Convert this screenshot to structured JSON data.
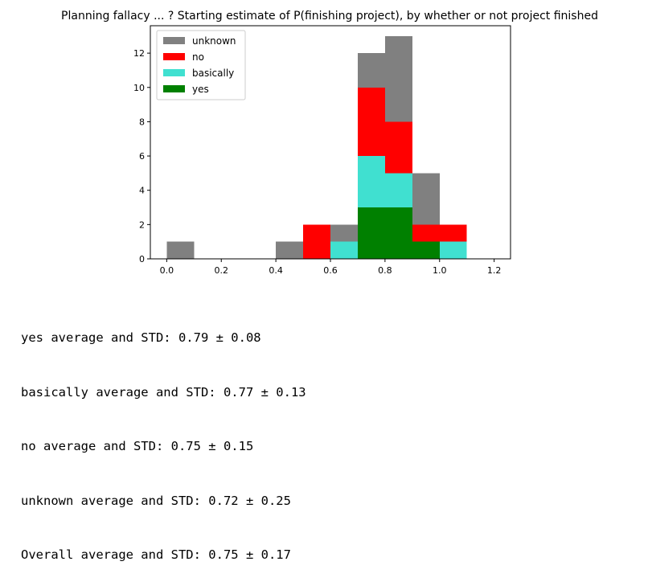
{
  "chart_data": {
    "type": "bar",
    "stacked": true,
    "title": "Planning fallacy ... ? Starting estimate of P(finishing project), by whether or not project finished",
    "xlabel": "",
    "ylabel": "",
    "xlim": [
      -0.06,
      1.26
    ],
    "ylim": [
      0,
      13.6
    ],
    "xticks": [
      0.0,
      0.2,
      0.4,
      0.6,
      0.8,
      1.0,
      1.2
    ],
    "xtick_labels": [
      "0.0",
      "0.2",
      "0.4",
      "0.6",
      "0.8",
      "1.0",
      "1.2"
    ],
    "yticks": [
      0,
      2,
      4,
      6,
      8,
      10,
      12
    ],
    "ytick_labels": [
      "0",
      "2",
      "4",
      "6",
      "8",
      "10",
      "12"
    ],
    "bin_edges": [
      0.0,
      0.1,
      0.2,
      0.3,
      0.4,
      0.5,
      0.6,
      0.7,
      0.8,
      0.9,
      1.0,
      1.1
    ],
    "grid": false,
    "legend_position": "top-left",
    "series": [
      {
        "name": "yes",
        "color": "#008000",
        "values": [
          0,
          0,
          0,
          0,
          0,
          0,
          0,
          3,
          3,
          1,
          0
        ]
      },
      {
        "name": "basically",
        "color": "#40e0d0",
        "values": [
          0,
          0,
          0,
          0,
          0,
          0,
          1,
          3,
          2,
          0,
          1
        ]
      },
      {
        "name": "no",
        "color": "#ff0000",
        "values": [
          0,
          0,
          0,
          0,
          0,
          2,
          0,
          4,
          3,
          1,
          1
        ]
      },
      {
        "name": "unknown",
        "color": "#808080",
        "values": [
          1,
          0,
          0,
          0,
          1,
          0,
          1,
          2,
          5,
          3,
          0
        ]
      }
    ],
    "legend_order": [
      "unknown",
      "no",
      "basically",
      "yes"
    ]
  },
  "stats": [
    "yes average and STD: 0.79 ± 0.08",
    "basically average and STD: 0.77 ± 0.13",
    "no average and STD: 0.75 ± 0.15",
    "unknown average and STD: 0.72 ± 0.25",
    "Overall average and STD: 0.75 ± 0.17"
  ]
}
